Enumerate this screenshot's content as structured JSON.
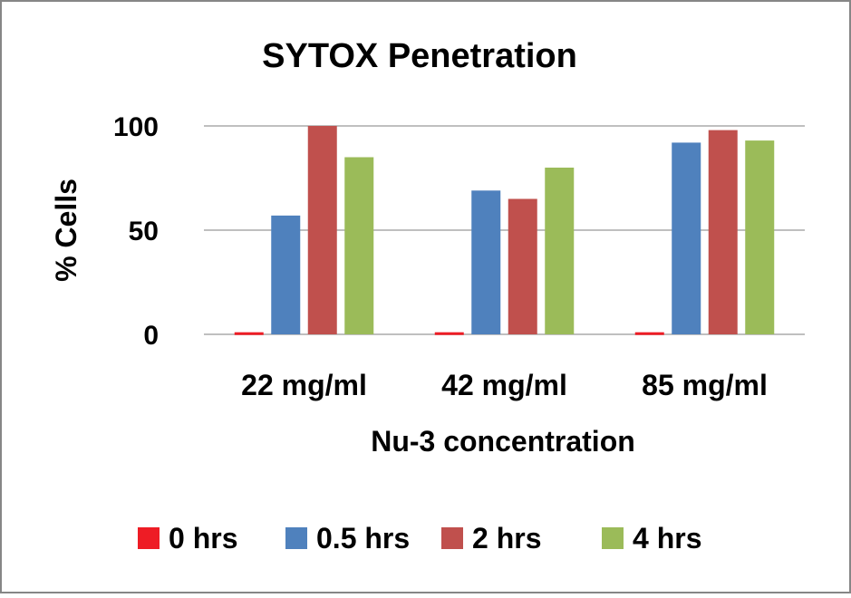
{
  "chart_data": {
    "type": "bar",
    "title": "SYTOX Penetration",
    "xlabel": "Nu-3 concentration",
    "ylabel": "% Cells",
    "ylim": [
      0,
      100
    ],
    "yticks": [
      0,
      50,
      100
    ],
    "ytick_labels": [
      "0",
      "50",
      "100"
    ],
    "grid": true,
    "legend_position": "bottom",
    "categories": [
      "22 mg/ml",
      "42 mg/ml",
      "85 mg/ml"
    ],
    "series": [
      {
        "name": "0 hrs",
        "color": "#ee1c25",
        "values": [
          1,
          1,
          1
        ]
      },
      {
        "name": "0.5 hrs",
        "color": "#4f81bd",
        "values": [
          57,
          69,
          92
        ]
      },
      {
        "name": "2 hrs",
        "color": "#c0504d",
        "values": [
          100,
          65,
          98
        ]
      },
      {
        "name": "4 hrs",
        "color": "#9bbb59",
        "values": [
          85,
          80,
          93
        ]
      }
    ]
  }
}
